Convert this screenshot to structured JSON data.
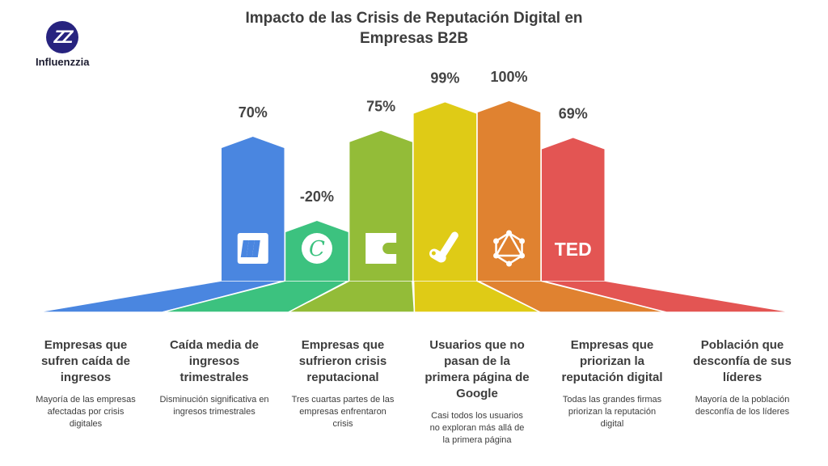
{
  "logo": {
    "mark": "ZZ",
    "name": "Influenzzia"
  },
  "chart_data": {
    "type": "bar",
    "title": "Impacto de las Crisis de Reputación Digital en Empresas B2B",
    "categories": [
      "Empresas que sufren caída de ingresos",
      "Caída media de ingresos trimestrales",
      "Empresas que sufrieron crisis reputacional",
      "Usuarios que no pasan de la primera página de Google",
      "Empresas que priorizan la reputación digital",
      "Población que desconfía de sus líderes"
    ],
    "values": [
      70,
      -20,
      75,
      99,
      100,
      69
    ],
    "value_labels": [
      "70%",
      "-20%",
      "75%",
      "99%",
      "100%",
      "69%"
    ],
    "descriptions": [
      "Mayoría de las empresas afectadas por crisis digitales",
      "Disminución significativa en ingresos trimestrales",
      "Tres cuartas partes de las empresas enfrentaron crisis",
      "Casi todos los usuarios no exploran más allá de la primera página",
      "Todas las grandes firmas priorizan la reputación digital",
      "Mayoría de la población desconfía de los líderes"
    ],
    "icons": [
      "miro-icon",
      "canva-icon",
      "clipchamp-icon",
      "paint-roller-icon",
      "graphql-icon",
      "ted-icon"
    ],
    "icon_text": {
      "ted": "TED",
      "canva": "C"
    },
    "colors": [
      "#4a86e0",
      "#3cc27f",
      "#93bc38",
      "#dfcb16",
      "#e08230",
      "#e35553"
    ],
    "xlabel": "",
    "ylabel": ""
  }
}
